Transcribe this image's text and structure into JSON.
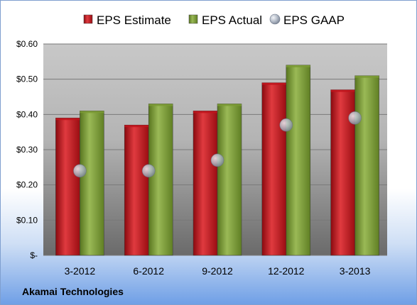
{
  "chart_data": {
    "type": "bar",
    "categories": [
      "3-2012",
      "6-2012",
      "9-2012",
      "12-2012",
      "3-2013"
    ],
    "series": [
      {
        "name": "EPS Estimate",
        "kind": "bar",
        "values": [
          0.39,
          0.37,
          0.41,
          0.49,
          0.47
        ],
        "color": "#c0141c"
      },
      {
        "name": "EPS Actual",
        "kind": "bar",
        "values": [
          0.41,
          0.43,
          0.43,
          0.54,
          0.51
        ],
        "color": "#7a9a34"
      },
      {
        "name": "EPS GAAP",
        "kind": "marker",
        "values": [
          0.24,
          0.24,
          0.27,
          0.37,
          0.39
        ],
        "color": "#a8b4c4"
      }
    ],
    "y_ticks": [
      {
        "value": 0,
        "label": "$-"
      },
      {
        "value": 0.1,
        "label": "$0.10"
      },
      {
        "value": 0.2,
        "label": "$0.20"
      },
      {
        "value": 0.3,
        "label": "$0.30"
      },
      {
        "value": 0.4,
        "label": "$0.40"
      },
      {
        "value": 0.5,
        "label": "$0.50"
      },
      {
        "value": 0.6,
        "label": "$0.60"
      }
    ],
    "ylim": [
      0,
      0.6
    ],
    "grid": true,
    "legend_position": "top",
    "company": "Akamai Technologies"
  }
}
